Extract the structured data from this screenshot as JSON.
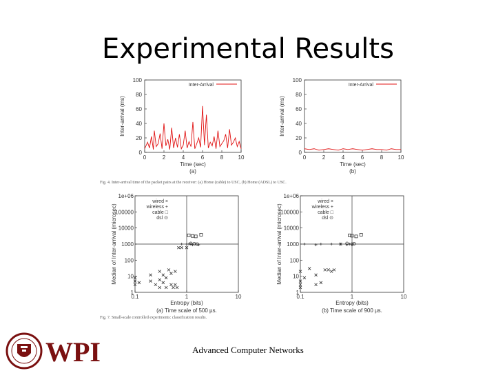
{
  "slide": {
    "title": "Experimental Results",
    "footer": "Advanced Computer Networks",
    "logo_text": "WPI",
    "caption_top": "Fig. 4.   Inter-arrival time of the packet pairs at the receiver: (a) Home (cable) to USC, (b) Home (ADSL) to USC.",
    "caption_bottom": "Fig. 7.   Small-scale controlled experiments: classification results."
  },
  "colors": {
    "series_red": "#e01010",
    "axis": "#333333",
    "scatter": "#333333"
  },
  "chart_data": [
    {
      "id": "a",
      "type": "line",
      "sublabel": "(a)",
      "xlabel": "Time (sec)",
      "ylabel": "Inter-arrival (ms)",
      "legend": "Inter-Arrival",
      "xlim": [
        0,
        10
      ],
      "ylim": [
        0,
        100
      ],
      "xticks": [
        "0",
        "2",
        "4",
        "6",
        "8",
        "10"
      ],
      "yticks": [
        "0",
        "20",
        "40",
        "60",
        "80",
        "100"
      ],
      "series": [
        {
          "name": "Inter-Arrival",
          "x": [
            0,
            0.3,
            0.5,
            0.7,
            0.9,
            1.0,
            1.2,
            1.4,
            1.6,
            1.8,
            2.0,
            2.2,
            2.4,
            2.6,
            2.8,
            3.0,
            3.2,
            3.4,
            3.6,
            3.8,
            4.0,
            4.2,
            4.4,
            4.6,
            4.8,
            5.0,
            5.2,
            5.4,
            5.6,
            5.8,
            6.0,
            6.2,
            6.4,
            6.6,
            6.8,
            7.0,
            7.2,
            7.4,
            7.6,
            7.8,
            8.0,
            8.2,
            8.4,
            8.6,
            8.8,
            9.0,
            9.2,
            9.4,
            9.6,
            9.8,
            10.0
          ],
          "y": [
            5,
            14,
            6,
            22,
            4,
            30,
            8,
            12,
            26,
            5,
            40,
            9,
            18,
            4,
            34,
            6,
            20,
            7,
            25,
            5,
            10,
            30,
            6,
            15,
            8,
            42,
            5,
            12,
            20,
            7,
            64,
            10,
            52,
            6,
            14,
            9,
            22,
            5,
            30,
            8,
            12,
            16,
            25,
            6,
            32,
            10,
            14,
            20,
            8,
            15,
            5
          ]
        }
      ]
    },
    {
      "id": "b",
      "type": "line",
      "sublabel": "(b)",
      "xlabel": "Time (sec)",
      "ylabel": "Inter-arrival (ms)",
      "legend": "Inter-Arrival",
      "xlim": [
        0,
        10
      ],
      "ylim": [
        0,
        100
      ],
      "xticks": [
        "0",
        "2",
        "4",
        "6",
        "8",
        "10"
      ],
      "yticks": [
        "0",
        "20",
        "40",
        "60",
        "80",
        "100"
      ],
      "series": [
        {
          "name": "Inter-Arrival",
          "x": [
            0,
            0.5,
            1.0,
            1.5,
            2.0,
            2.5,
            3.0,
            3.5,
            4.0,
            4.5,
            5.0,
            5.5,
            6.0,
            6.5,
            7.0,
            7.5,
            8.0,
            8.5,
            9.0,
            9.5,
            10.0
          ],
          "y": [
            5,
            4,
            5,
            3,
            4,
            5,
            4,
            3,
            5,
            4,
            5,
            4,
            3,
            4,
            5,
            4,
            4,
            3,
            5,
            4,
            4
          ]
        }
      ]
    },
    {
      "id": "c",
      "type": "scatter",
      "sublabel": "(a) Time scale of 500 µs.",
      "xlabel": "Entropy (bits)",
      "ylabel": "Median of Inter-arrival (microsec)",
      "xscale": "log",
      "yscale": "log",
      "xlim": [
        0.1,
        10
      ],
      "ylim": [
        1,
        1000000
      ],
      "xticks": [
        "0.1",
        "1",
        "10"
      ],
      "yticks": [
        "1",
        "10",
        "100",
        "1000",
        "10000",
        "100000",
        "1e+06"
      ],
      "legend": [
        "wired ×",
        "wireless +",
        "cable □",
        "dsl ⊙"
      ],
      "series": [
        {
          "name": "wired",
          "marker": "x",
          "points": [
            [
              0.1,
              3
            ],
            [
              0.1,
              5
            ],
            [
              0.1,
              8
            ],
            [
              0.12,
              4
            ],
            [
              0.2,
              5
            ],
            [
              0.2,
              12
            ],
            [
              0.25,
              3
            ],
            [
              0.3,
              2
            ],
            [
              0.3,
              6
            ],
            [
              0.3,
              20
            ],
            [
              0.35,
              4
            ],
            [
              0.35,
              12
            ],
            [
              0.4,
              2
            ],
            [
              0.4,
              8
            ],
            [
              0.45,
              25
            ],
            [
              0.5,
              3
            ],
            [
              0.5,
              15
            ],
            [
              0.55,
              2
            ],
            [
              0.6,
              3
            ],
            [
              0.6,
              20
            ],
            [
              0.65,
              2
            ],
            [
              0.7,
              600
            ],
            [
              0.8,
              600
            ],
            [
              1.0,
              600
            ]
          ]
        },
        {
          "name": "wireless",
          "marker": "+",
          "points": [
            [
              0.8,
              1000
            ],
            [
              1.0,
              1000
            ],
            [
              1.1,
              1000
            ],
            [
              1.2,
              1000
            ],
            [
              1.3,
              900
            ],
            [
              1.5,
              1000
            ],
            [
              1.7,
              900
            ]
          ]
        },
        {
          "name": "cable",
          "marker": "square",
          "points": [
            [
              1.1,
              3500
            ],
            [
              1.3,
              3200
            ],
            [
              1.5,
              3000
            ],
            [
              1.9,
              3800
            ]
          ]
        },
        {
          "name": "dsl",
          "marker": "circle",
          "points": [
            [
              1.2,
              1100
            ],
            [
              1.4,
              1050
            ],
            [
              1.6,
              1000
            ]
          ]
        }
      ],
      "reference_lines": {
        "x": 1.0,
        "y": 1000
      }
    },
    {
      "id": "d",
      "type": "scatter",
      "sublabel": "(b) Time scale of 900 µs.",
      "xlabel": "Entropy (bits)",
      "ylabel": "Median of Inter-arrival (microsec)",
      "xscale": "log",
      "yscale": "log",
      "xlim": [
        0.1,
        10
      ],
      "ylim": [
        1,
        1000000
      ],
      "xticks": [
        "0.1",
        "1",
        "10"
      ],
      "yticks": [
        "1",
        "10",
        "100",
        "1000",
        "10000",
        "100000",
        "1e+06"
      ],
      "legend": [
        "wired ×",
        "wireless +",
        "cable □",
        "dsl ⊙"
      ],
      "series": [
        {
          "name": "wired",
          "marker": "x",
          "points": [
            [
              0.1,
              2
            ],
            [
              0.1,
              3
            ],
            [
              0.1,
              5
            ],
            [
              0.1,
              20
            ],
            [
              0.12,
              8
            ],
            [
              0.15,
              30
            ],
            [
              0.2,
              12
            ],
            [
              0.2,
              3
            ],
            [
              0.25,
              4
            ],
            [
              0.3,
              25
            ],
            [
              0.35,
              25
            ],
            [
              0.4,
              20
            ],
            [
              0.45,
              25
            ],
            [
              0.6,
              1000
            ]
          ]
        },
        {
          "name": "wireless",
          "marker": "+",
          "points": [
            [
              0.12,
              1000
            ],
            [
              0.2,
              900
            ],
            [
              0.25,
              1000
            ],
            [
              0.4,
              1000
            ],
            [
              0.6,
              1000
            ],
            [
              0.8,
              900
            ],
            [
              0.9,
              1000
            ],
            [
              1.0,
              900
            ]
          ]
        },
        {
          "name": "cable",
          "marker": "square",
          "points": [
            [
              0.9,
              3500
            ],
            [
              1.0,
              3300
            ],
            [
              1.2,
              3000
            ],
            [
              1.5,
              3800
            ]
          ]
        },
        {
          "name": "dsl",
          "marker": "circle",
          "points": [
            [
              0.8,
              1100
            ],
            [
              1.0,
              1000
            ],
            [
              1.1,
              1050
            ]
          ]
        }
      ],
      "reference_lines": {
        "x": 1.0,
        "y": 1000
      }
    }
  ]
}
